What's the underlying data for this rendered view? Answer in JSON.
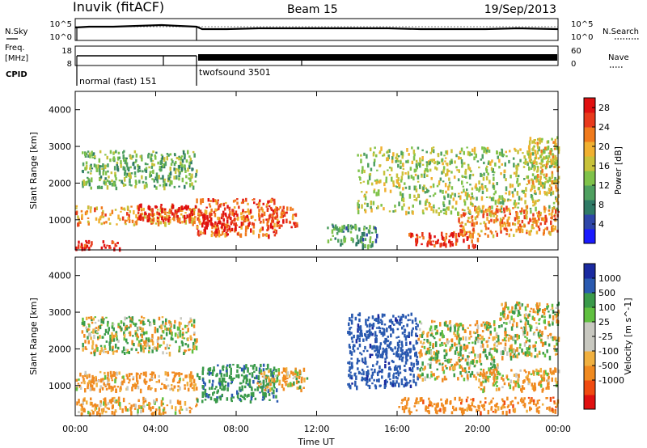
{
  "header": {
    "station": "Inuvik (fitACF)",
    "beam": "Beam 15",
    "date": "19/Sep/2013"
  },
  "noise_panel": {
    "left_label": "N.Sky",
    "left_ticks": [
      "10^5",
      "10^0"
    ],
    "right_label": "N.Search",
    "right_ticks": [
      "10^5",
      "10^0"
    ]
  },
  "freq_panel": {
    "left_label": [
      "Freq.",
      "[MHz]"
    ],
    "left_ticks": [
      "18",
      "8"
    ],
    "right_label": "Nave",
    "right_ticks": [
      "60",
      "0"
    ]
  },
  "cpid_panel": {
    "label": "CPID",
    "modes": [
      {
        "name": "normal (fast) 151",
        "start_hour": 0,
        "end_hour": 6.05
      },
      {
        "name": "twofsound 3501",
        "start_hour": 6.05,
        "end_hour": 24
      }
    ]
  },
  "colors": {
    "power_scale": [
      "#1a1aff",
      "#2e46a8",
      "#2f7a66",
      "#4fa060",
      "#7fc24a",
      "#c8c23a",
      "#f0b030",
      "#f07a1c",
      "#e83a1c",
      "#e01010"
    ],
    "velocity_scale": [
      "#e01010",
      "#f04a10",
      "#f08a20",
      "#f0b040",
      "#c8c8c0",
      "#c8c8c0",
      "#60c040",
      "#3a9a4a",
      "#2a5ab0",
      "#1a2aa0"
    ]
  },
  "chart_data": [
    {
      "type": "heatmap",
      "title": "",
      "xlabel": "",
      "ylabel": "Slant Range [km]",
      "xlim": [
        0,
        24
      ],
      "ylim": [
        180,
        4500
      ],
      "x_tick_labels": [
        "00:00",
        "04:00",
        "08:00",
        "12:00",
        "16:00",
        "20:00",
        "00:00"
      ],
      "y_ticks": [
        1000,
        2000,
        3000,
        4000
      ],
      "colorbar": {
        "label": "Power [dB]",
        "ticks": [
          "4",
          "8",
          "12",
          "16",
          "20",
          "24",
          "28"
        ],
        "range": [
          0,
          30
        ]
      },
      "regions": [
        {
          "t": [
            0.0,
            2.2
          ],
          "r": [
            250,
            500
          ],
          "v": 27
        },
        {
          "t": [
            0.0,
            6.0
          ],
          "r": [
            900,
            1400
          ],
          "v": 20
        },
        {
          "t": [
            3.0,
            6.0
          ],
          "r": [
            1000,
            1450
          ],
          "v": 28
        },
        {
          "t": [
            0.3,
            6.0
          ],
          "r": [
            1900,
            2900
          ],
          "v": 12
        },
        {
          "t": [
            6.0,
            10.0
          ],
          "r": [
            600,
            1600
          ],
          "v": 24
        },
        {
          "t": [
            6.2,
            8.0
          ],
          "r": [
            700,
            1200
          ],
          "v": 29
        },
        {
          "t": [
            9.5,
            11.0
          ],
          "r": [
            800,
            1400
          ],
          "v": 25
        },
        {
          "t": [
            12.5,
            15.0
          ],
          "r": [
            300,
            900
          ],
          "v": 10
        },
        {
          "t": [
            14.0,
            24.0
          ],
          "r": [
            1200,
            3000
          ],
          "v": 15
        },
        {
          "t": [
            16.5,
            20.0
          ],
          "r": [
            300,
            700
          ],
          "v": 26
        },
        {
          "t": [
            19.0,
            24.0
          ],
          "r": [
            600,
            1400
          ],
          "v": 22
        },
        {
          "t": [
            22.5,
            24.0
          ],
          "r": [
            1800,
            3300
          ],
          "v": 18
        }
      ]
    },
    {
      "type": "heatmap",
      "title": "",
      "xlabel": "Time UT",
      "ylabel": "Slant Range [km]",
      "xlim": [
        0,
        24
      ],
      "ylim": [
        180,
        4500
      ],
      "x_tick_labels": [
        "00:00",
        "04:00",
        "08:00",
        "12:00",
        "16:00",
        "20:00",
        "00:00"
      ],
      "y_ticks": [
        1000,
        2000,
        3000,
        4000
      ],
      "colorbar": {
        "label": "Velocity [m s^-1]",
        "ticks": [
          "1000",
          "500",
          "100",
          "25",
          "-25",
          "-100",
          "-500",
          "-1000"
        ]
      },
      "regions": [
        {
          "t": [
            0.0,
            6.0
          ],
          "r": [
            250,
            700
          ],
          "v": -150
        },
        {
          "t": [
            0.0,
            6.0
          ],
          "r": [
            900,
            1400
          ],
          "v": -200
        },
        {
          "t": [
            0.3,
            6.0
          ],
          "r": [
            1900,
            2900
          ],
          "v": 0
        },
        {
          "t": [
            6.0,
            10.0
          ],
          "r": [
            600,
            1600
          ],
          "v": 400
        },
        {
          "t": [
            9.0,
            11.5
          ],
          "r": [
            900,
            1500
          ],
          "v": -80
        },
        {
          "t": [
            13.5,
            17.0
          ],
          "r": [
            1000,
            3000
          ],
          "v": 800
        },
        {
          "t": [
            16.0,
            24.0
          ],
          "r": [
            300,
            700
          ],
          "v": -300
        },
        {
          "t": [
            17.0,
            21.0
          ],
          "r": [
            1200,
            2800
          ],
          "v": 0
        },
        {
          "t": [
            20.0,
            24.0
          ],
          "r": [
            900,
            1500
          ],
          "v": -150
        },
        {
          "t": [
            21.0,
            24.0
          ],
          "r": [
            1800,
            3300
          ],
          "v": 0
        }
      ]
    }
  ]
}
